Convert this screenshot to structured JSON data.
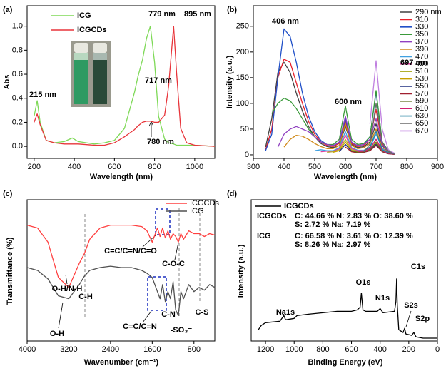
{
  "chart_data": [
    {
      "type": "line",
      "panel_label": "(a)",
      "xlabel": "Wavelength (nm)",
      "ylabel": "Abs",
      "xlim": [
        165,
        1100
      ],
      "xticks": [
        200,
        400,
        600,
        800,
        1000
      ],
      "ylim": [
        -0.1,
        1.17
      ],
      "yticks": [
        {
          "value": 0,
          "label": "0.0"
        },
        0.2,
        0.4,
        0.6,
        0.8,
        {
          "value": 1,
          "label": "1.0"
        }
      ],
      "legend": "upper-left",
      "x": [
        200,
        215,
        230,
        260,
        300,
        350,
        390,
        420,
        500,
        550,
        600,
        650,
        700,
        717,
        740,
        760,
        779,
        800,
        820,
        850,
        870,
        895,
        910,
        930,
        960,
        1000,
        1100
      ],
      "series": [
        {
          "name": "ICG",
          "color": "#7ed957",
          "values": [
            0.25,
            0.38,
            0.2,
            0.05,
            0.03,
            0.04,
            0.07,
            0.04,
            0.02,
            0.03,
            0.05,
            0.15,
            0.45,
            0.58,
            0.72,
            0.9,
            1.0,
            0.7,
            0.25,
            0.06,
            0.03,
            0.02,
            0.01,
            0.01,
            0.01,
            0.01,
            0.0
          ]
        },
        {
          "name": "ICGCDs",
          "color": "#e8343a",
          "values": [
            0.2,
            0.27,
            0.18,
            0.05,
            0.03,
            0.02,
            0.02,
            0.02,
            0.01,
            0.01,
            0.03,
            0.08,
            0.14,
            0.17,
            0.2,
            0.21,
            0.21,
            0.2,
            0.2,
            0.26,
            0.5,
            1.0,
            0.6,
            0.15,
            0.03,
            0.01,
            0.0
          ]
        }
      ],
      "annotations": [
        "215 nm",
        "717 nm",
        "779 nm",
        "895 nm",
        "780 nm"
      ]
    },
    {
      "type": "line",
      "panel_label": "(b)",
      "xlabel": "Wavelength (nm)",
      "ylabel": "Intensity (a.u.)",
      "xlim": [
        300,
        900
      ],
      "xticks": [
        300,
        400,
        500,
        600,
        700,
        800,
        900
      ],
      "ylim": [
        -7,
        290
      ],
      "yticks": [
        0,
        50,
        100,
        150,
        200,
        250
      ],
      "legend": "right",
      "x": [
        340,
        360,
        380,
        400,
        420,
        440,
        460,
        480,
        500,
        520,
        540,
        560,
        580,
        600,
        620,
        640,
        660,
        680,
        700,
        720,
        740,
        760
      ],
      "series": [
        {
          "name": "290 nm",
          "color": "#404040",
          "values": [
            15,
            70,
            160,
            180,
            160,
            120,
            85,
            55,
            35,
            22,
            16,
            14,
            18,
            55,
            20,
            14,
            16,
            25,
            60,
            18,
            6,
            3
          ]
        },
        {
          "name": "310",
          "color": "#e8202a",
          "values": [
            10,
            50,
            150,
            186,
            180,
            140,
            100,
            65,
            40,
            25,
            18,
            16,
            22,
            65,
            22,
            16,
            18,
            30,
            88,
            22,
            7,
            3
          ]
        },
        {
          "name": "330",
          "color": "#2050c8",
          "values": [
            8,
            40,
            150,
            245,
            230,
            180,
            120,
            75,
            45,
            28,
            20,
            18,
            24,
            70,
            24,
            18,
            20,
            35,
            122,
            25,
            8,
            3
          ]
        },
        {
          "name": "350",
          "color": "#3a9a3a",
          "values": [
            null,
            80,
            100,
            110,
            105,
            90,
            70,
            50,
            35,
            25,
            20,
            20,
            30,
            95,
            30,
            20,
            22,
            35,
            125,
            25,
            8,
            3
          ]
        },
        {
          "name": "370",
          "color": "#9040c0",
          "values": [
            null,
            null,
            15,
            40,
            50,
            55,
            50,
            45,
            35,
            25,
            20,
            18,
            25,
            75,
            25,
            18,
            20,
            30,
            70,
            20,
            6,
            2
          ]
        },
        {
          "name": "390",
          "color": "#d08a1a",
          "values": [
            null,
            null,
            null,
            15,
            30,
            38,
            36,
            30,
            22,
            16,
            12,
            12,
            18,
            60,
            18,
            12,
            14,
            22,
            50,
            14,
            5,
            2
          ]
        },
        {
          "name": "470",
          "color": "#40a0e0",
          "values": [
            null,
            null,
            null,
            null,
            null,
            null,
            null,
            null,
            8,
            10,
            8,
            8,
            14,
            45,
            14,
            9,
            9,
            14,
            40,
            12,
            4,
            2
          ]
        },
        {
          "name": "490",
          "color": "#e040a0",
          "values": [
            null,
            null,
            null,
            null,
            null,
            null,
            null,
            null,
            null,
            6,
            7,
            7,
            12,
            38,
            12,
            8,
            8,
            12,
            30,
            10,
            3,
            2
          ]
        },
        {
          "name": "510",
          "color": "#b0b030",
          "values": [
            null,
            null,
            null,
            null,
            null,
            null,
            null,
            null,
            null,
            null,
            5,
            6,
            10,
            30,
            10,
            7,
            7,
            10,
            25,
            8,
            3,
            2
          ]
        },
        {
          "name": "530",
          "color": "#c8a000",
          "values": [
            null,
            null,
            null,
            null,
            null,
            null,
            null,
            null,
            null,
            null,
            null,
            5,
            8,
            25,
            8,
            6,
            6,
            9,
            22,
            7,
            3,
            2
          ]
        },
        {
          "name": "550",
          "color": "#203080",
          "values": [
            null,
            null,
            null,
            null,
            null,
            null,
            null,
            null,
            null,
            null,
            null,
            null,
            6,
            20,
            7,
            5,
            5,
            8,
            20,
            6,
            2,
            1
          ]
        },
        {
          "name": "570",
          "color": "#a02030",
          "values": [
            null,
            null,
            null,
            null,
            null,
            null,
            null,
            null,
            null,
            null,
            null,
            null,
            null,
            15,
            6,
            4,
            5,
            8,
            18,
            6,
            2,
            1
          ]
        },
        {
          "name": "590",
          "color": "#607020",
          "values": [
            null,
            null,
            null,
            null,
            null,
            null,
            null,
            null,
            null,
            null,
            null,
            null,
            null,
            null,
            8,
            5,
            6,
            10,
            24,
            7,
            3,
            2
          ]
        },
        {
          "name": "610",
          "color": "#d02070",
          "values": [
            null,
            null,
            null,
            null,
            null,
            null,
            null,
            null,
            null,
            null,
            null,
            null,
            null,
            null,
            null,
            6,
            7,
            12,
            30,
            8,
            3,
            2
          ]
        },
        {
          "name": "630",
          "color": "#2080a0",
          "values": [
            null,
            null,
            null,
            null,
            null,
            null,
            null,
            null,
            null,
            null,
            null,
            null,
            null,
            null,
            null,
            null,
            8,
            15,
            45,
            10,
            4,
            2
          ]
        },
        {
          "name": "650",
          "color": "#6a6a6a",
          "values": [
            null,
            null,
            null,
            null,
            null,
            null,
            null,
            null,
            null,
            null,
            null,
            null,
            null,
            null,
            null,
            null,
            6,
            20,
            100,
            25,
            6,
            2
          ]
        },
        {
          "name": "670",
          "color": "#c080e0",
          "values": [
            null,
            null,
            null,
            null,
            null,
            null,
            null,
            null,
            null,
            null,
            null,
            null,
            null,
            null,
            null,
            null,
            null,
            60,
            183,
            50,
            10,
            3
          ]
        }
      ],
      "annotations": [
        "406 nm",
        "600 nm",
        "697 nm"
      ]
    },
    {
      "type": "line",
      "panel_label": "(c)",
      "xlabel": "Wavenumber (cm⁻¹)",
      "ylabel": "Transmittance (%)",
      "xlim": [
        4000,
        400
      ],
      "xticks": [
        4000,
        3200,
        2400,
        1600,
        800
      ],
      "ylim": [
        0,
        100
      ],
      "legend": "upper-right",
      "x": [
        4000,
        3800,
        3600,
        3400,
        3200,
        3000,
        2900,
        2800,
        2600,
        2400,
        2200,
        2000,
        1800,
        1700,
        1600,
        1500,
        1450,
        1400,
        1350,
        1300,
        1250,
        1200,
        1150,
        1100,
        1050,
        1000,
        900,
        800,
        700,
        600,
        500,
        400
      ],
      "series": [
        {
          "name": "ICGCDs",
          "color": "#ff4040",
          "values": [
            82,
            80,
            70,
            45,
            38,
            55,
            62,
            72,
            80,
            82,
            82,
            82,
            81,
            78,
            70,
            80,
            74,
            80,
            73,
            78,
            72,
            76,
            74,
            70,
            76,
            72,
            78,
            76,
            76,
            74,
            76,
            75
          ]
        },
        {
          "name": "ICG",
          "color": "#505050",
          "values": [
            52,
            50,
            44,
            32,
            30,
            40,
            46,
            50,
            52,
            53,
            52,
            52,
            50,
            48,
            45,
            35,
            30,
            40,
            28,
            35,
            30,
            42,
            22,
            18,
            35,
            30,
            40,
            35,
            38,
            36,
            40,
            38
          ]
        }
      ],
      "annotations": [
        "O-H/N-H",
        "C-H",
        "C=C/C=N/C=O",
        "C-O-C",
        "O-H",
        "C-N",
        "C=C/C=N",
        "-SO₃⁻",
        "C-S"
      ]
    },
    {
      "type": "line",
      "panel_label": "(d)",
      "xlabel": "Binding Energy (eV)",
      "ylabel": "Intensity (a.u.)",
      "xlim": [
        1300,
        0
      ],
      "xticks": [
        1200,
        1000,
        800,
        600,
        400,
        200,
        0
      ],
      "ylim": [
        0,
        100
      ],
      "legend": "upper-left",
      "x": [
        1250,
        1230,
        1200,
        1100,
        1072,
        1060,
        1000,
        980,
        900,
        800,
        700,
        600,
        560,
        540,
        531,
        520,
        500,
        420,
        400,
        380,
        300,
        290,
        285,
        280,
        270,
        240,
        229,
        220,
        180,
        165,
        150,
        100,
        50,
        0
      ],
      "series": [
        {
          "name": "ICGCDs",
          "color": "#000000",
          "values": [
            8,
            11,
            13,
            14,
            18,
            15,
            16,
            18,
            19,
            20,
            21,
            21,
            22,
            24,
            34,
            22,
            21,
            21,
            23,
            20,
            21,
            28,
            44,
            25,
            8,
            6,
            9,
            5,
            4,
            6,
            3,
            2,
            2,
            2
          ]
        }
      ],
      "annotations": [
        "Na1s",
        "O1s",
        "N1s",
        "C1s",
        "S2s",
        "S2p"
      ],
      "composition": [
        {
          "sample": "ICGCDs",
          "lines": [
            "C: 44.66 % N: 2.83 % O: 38.60 %",
            "S: 2.72 % Na: 7.19 %"
          ]
        },
        {
          "sample": "ICG",
          "lines": [
            "C: 66.58 % N: 3.61 % O: 12.39 %",
            "S: 8.26 % Na: 2.97 %"
          ]
        }
      ]
    }
  ]
}
